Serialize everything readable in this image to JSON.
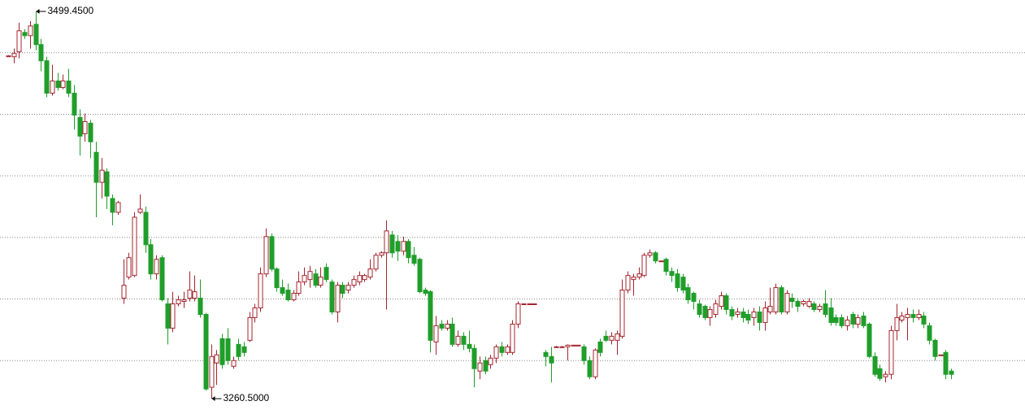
{
  "chart_data": {
    "type": "candlestick",
    "open": [
      3472,
      3471.5,
      3474.5,
      3486.5,
      3484.5,
      3491.5,
      3479,
      3469,
      3449,
      3456.5,
      3452.5,
      3456.5,
      3449,
      3434,
      3424,
      3430.5,
      3412.5,
      3394,
      3400.5,
      3384,
      3375.5,
      3322.5,
      3335.5,
      3336.5,
      3375.5,
      3375.5,
      3355.5,
      3337.5,
      3347.5,
      3319,
      3304,
      3319,
      3320.5,
      3322.5,
      3322.5,
      3322.5,
      3312.5,
      3267.5,
      3282.5,
      3297.5,
      3297.5,
      3280.5,
      3294,
      3292.5,
      3296.5,
      3310.5,
      3316.5,
      3337.5,
      3360.5,
      3340.5,
      3329,
      3327.5,
      3321.5,
      3325.5,
      3332.5,
      3334,
      3337.5,
      3330.5,
      3341.5,
      3332.5,
      3314,
      3330.5,
      3327.5,
      3330.5,
      3332.5,
      3334,
      3335.5,
      3340.5,
      3349,
      3350.5,
      3361.5,
      3357.5,
      3351.5,
      3357.5,
      3349,
      3346.5,
      3327.5,
      3326.5,
      3295.5,
      3306.5,
      3304,
      3306.5,
      3294,
      3299,
      3294,
      3291.5,
      3277.5,
      3284,
      3281.5,
      3285.5,
      3292.5,
      3289,
      3289,
      3306.5,
      3319,
      3319,
      3319,
      null,
      3289,
      3286.5,
      3292.5,
      3292.5,
      3292.5,
      3293.5,
      3293.5,
      3292.5,
      3284,
      3274,
      3295.5,
      3299,
      3296.5,
      3296.5,
      3299,
      3327.5,
      3334,
      3335.5,
      3336.5,
      3349,
      3350.5,
      3345.5,
      3346.5,
      3339,
      3337.5,
      3335.5,
      3329,
      3325.5,
      3319,
      3317.5,
      3310.5,
      3312.5,
      3317.5,
      3324,
      3315.5,
      3312.5,
      3314,
      3312.5,
      3310.5,
      3314,
      3307.5,
      3314,
      3314,
      3329,
      3314,
      3322.5,
      3320.5,
      3319,
      3317.5,
      3319,
      3315.5,
      3319,
      3316.5,
      3310.5,
      3310.5,
      3305.5,
      3312.5,
      3306.5,
      3311.5,
      3306.5,
      3286.5,
      3279,
      3274,
      3275.5,
      3302.5,
      3309,
      3310.5,
      3312.5,
      3310.5,
      3311.5,
      3305.5,
      3296.5,
      3287.5,
      3289,
      3277.5
    ],
    "high": [
      3472.5,
      3476.5,
      3492.5,
      3488.5,
      3493.5,
      3499.45,
      3482.5,
      3471.5,
      3466.5,
      3461.5,
      3460.5,
      3464,
      3454,
      3439,
      3436.5,
      3432.5,
      3419,
      3409,
      3402.5,
      3386.5,
      3382.5,
      3346.5,
      3350.5,
      3375.5,
      3386.5,
      3379,
      3359,
      3349,
      3349,
      3322.5,
      3326.5,
      3324,
      3326.5,
      3339,
      3336.5,
      3334,
      3313.5,
      3294,
      3290.5,
      3300.5,
      3304,
      3286.5,
      3297.5,
      3295.5,
      3314,
      3319,
      3341.5,
      3365.5,
      3362.5,
      3341.5,
      3334,
      3331.5,
      3327.5,
      3339,
      3341.5,
      3342.5,
      3340.5,
      3341.5,
      3344,
      3334,
      3332.5,
      3332.5,
      3332.5,
      3336.5,
      3339,
      3337.5,
      3346.5,
      3350.5,
      3351.5,
      3370.5,
      3364,
      3361.5,
      3360.5,
      3359,
      3354,
      3347.5,
      3329,
      3327.5,
      3311.5,
      3309,
      3309,
      3310.5,
      3302.5,
      3301.5,
      3302.5,
      3294,
      3286.5,
      3286.5,
      3287.5,
      3294,
      3295.5,
      3294,
      3309,
      3320.5,
      3319,
      3319,
      3319,
      null,
      3290.5,
      3292.5,
      3293,
      3293,
      3294,
      3293.5,
      3293.5,
      3294,
      3286.5,
      3291.5,
      3297.5,
      3302.5,
      3301.5,
      3302.5,
      3334,
      3339,
      3337.5,
      3341.5,
      3350.5,
      3352.5,
      3351.5,
      3345.5,
      3347.5,
      3341.5,
      3340.5,
      3337.5,
      3331.5,
      3326.5,
      3321.5,
      3318.5,
      3317.5,
      3321.5,
      3326.5,
      3325.5,
      3317.5,
      3316.5,
      3316.5,
      3315.5,
      3316.5,
      3317.5,
      3320.5,
      3329,
      3331.5,
      3330.5,
      3327.5,
      3325.5,
      3322.5,
      3321.5,
      3322.5,
      3320.5,
      3319,
      3327.5,
      3322.5,
      3312.5,
      3312.5,
      3311.5,
      3314,
      3312.5,
      3314,
      3307.5,
      3289,
      3281.5,
      3277.5,
      3305.5,
      3319,
      3314,
      3316.5,
      3315.5,
      3315.5,
      3314,
      3307.5,
      3297.5,
      3287.5,
      3290.5,
      3279
    ],
    "low": [
      3471.5,
      3467.5,
      3470.5,
      3482.5,
      3476.5,
      3475.5,
      3462.5,
      3446.5,
      3447.5,
      3450.5,
      3451.5,
      3446.5,
      3426.5,
      3410.5,
      3419,
      3409,
      3372.5,
      3384,
      3377.5,
      3367.5,
      3374,
      3319,
      3334,
      3335.5,
      3374.5,
      3350.5,
      3334,
      3334,
      3320.5,
      3294,
      3301.5,
      3317.5,
      3316.5,
      3320.5,
      3320.5,
      3310.5,
      3265.5,
      3260.5,
      3269,
      3279,
      3281.5,
      3279,
      3284,
      3286.5,
      3295.5,
      3307.5,
      3314,
      3335.5,
      3339,
      3326.5,
      3324,
      3320.5,
      3320.5,
      3324,
      3330.5,
      3329,
      3329,
      3329,
      3332.5,
      3312.5,
      3307.5,
      3322.5,
      3325.5,
      3329,
      3330.5,
      3332.5,
      3334,
      3339,
      3347.5,
      3315.5,
      3347.5,
      3345.5,
      3349,
      3344,
      3342.5,
      3325.5,
      3324,
      3289,
      3287.5,
      3302.5,
      3302.5,
      3292.5,
      3292.5,
      3290.5,
      3289,
      3267.5,
      3272.5,
      3275.5,
      3279,
      3282.5,
      3286.5,
      3287.5,
      3287.5,
      3304,
      3319,
      3319,
      3319,
      null,
      3280.5,
      3270.5,
      3292,
      3292,
      3284,
      3293.5,
      3293.5,
      3281.5,
      3272.5,
      3272.5,
      3286.5,
      3295.5,
      3294,
      3287.5,
      3297.5,
      3325.5,
      3324,
      3334,
      3335.5,
      3347.5,
      3344,
      3345.5,
      3336.5,
      3332.5,
      3326.5,
      3325.5,
      3319,
      3315.5,
      3310.5,
      3309,
      3305.5,
      3310.5,
      3315.5,
      3312.5,
      3309,
      3310.5,
      3307.5,
      3306.5,
      3305.5,
      3302.5,
      3302.5,
      3312.5,
      3312.5,
      3312.5,
      3312.5,
      3316.5,
      3314,
      3317.5,
      3316.5,
      3314,
      3314,
      3310.5,
      3305.5,
      3305.5,
      3304,
      3302.5,
      3304,
      3304,
      3304,
      3285.5,
      3274,
      3271.5,
      3270.5,
      3272.5,
      3296.5,
      3307.5,
      3296.5,
      3307.5,
      3309,
      3304,
      3294,
      3284,
      3287.5,
      3272.5,
      3272.5
    ],
    "close": [
      3472,
      3473.5,
      3487.5,
      3484.5,
      3490.5,
      3479,
      3469,
      3449,
      3456.5,
      3452.5,
      3456.5,
      3449,
      3435.5,
      3422.5,
      3431.5,
      3419,
      3394,
      3401.5,
      3385.5,
      3375.5,
      3381.5,
      3330.5,
      3347.5,
      3372.5,
      3377.5,
      3355.5,
      3337.5,
      3346.5,
      3321.5,
      3304,
      3319,
      3321.5,
      3321.5,
      3327.5,
      3326.5,
      3312.5,
      3266.5,
      3286.5,
      3287.5,
      3281.5,
      3284,
      3284,
      3286.5,
      3289,
      3310.5,
      3316.5,
      3337.5,
      3360.5,
      3340.5,
      3329,
      3325.5,
      3321.5,
      3325.5,
      3332.5,
      3336.5,
      3339,
      3330.5,
      3335.5,
      3334,
      3314,
      3330.5,
      3325.5,
      3330.5,
      3334,
      3336.5,
      3336.5,
      3340.5,
      3349,
      3350.5,
      3364,
      3350.5,
      3351.5,
      3357.5,
      3347.5,
      3344,
      3326.5,
      3325.5,
      3296.5,
      3305.5,
      3304,
      3306.5,
      3294,
      3299,
      3294,
      3291.5,
      3279,
      3282.5,
      3277.5,
      3285.5,
      3292.5,
      3289,
      3292.5,
      3306.5,
      3319,
      3319,
      3319,
      3319,
      null,
      3286.5,
      3282.5,
      3292.5,
      3292.5,
      3293.5,
      3293.5,
      3293.5,
      3284,
      3274,
      3290.5,
      3289,
      3296.5,
      3299,
      3300.5,
      3327.5,
      3336.5,
      3335.5,
      3337.5,
      3349,
      3350.5,
      3345.5,
      3345.5,
      3339,
      3336.5,
      3329,
      3327.5,
      3321.5,
      3320.5,
      3312.5,
      3310.5,
      3315.5,
      3319,
      3324,
      3315.5,
      3311.5,
      3314,
      3310.5,
      3309,
      3314,
      3307.5,
      3316.5,
      3317.5,
      3329,
      3314,
      3325.5,
      3320.5,
      3317.5,
      3320.5,
      3320.5,
      3315.5,
      3317.5,
      3312.5,
      3307.5,
      3307.5,
      3305.5,
      3309,
      3306.5,
      3310.5,
      3305.5,
      3286.5,
      3275.5,
      3273,
      3275.5,
      3302.5,
      3310.5,
      3311.5,
      3312.5,
      3310.5,
      3312.5,
      3306.5,
      3296.5,
      3286.5,
      3287.5,
      3275.5,
      3275.5
    ],
    "up_color": "#a4242e",
    "down_color": "#1f9e2a",
    "ylim": [
      3253.5,
      3506.5
    ],
    "ygrid": [
      3474,
      3436,
      3398,
      3360,
      3322,
      3284
    ],
    "grid": true,
    "max_label": "3499.4500",
    "max_index": 5,
    "min_label": "3260.5000",
    "min_index": 37
  }
}
